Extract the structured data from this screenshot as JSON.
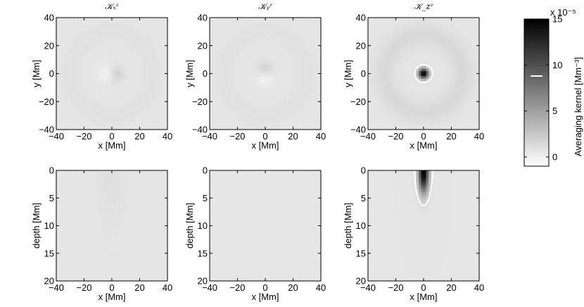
{
  "chart_data": [
    {
      "type": "heatmap",
      "title": "𝒦ₓᶻ",
      "xlabel": "x [Mm]",
      "ylabel": "y [Mm]",
      "xlim": [
        -40,
        40
      ],
      "ylim": [
        -40,
        40
      ],
      "xticks": [
        -40,
        -20,
        0,
        20,
        40
      ],
      "yticks": [
        40,
        20,
        0,
        -20,
        -40
      ],
      "xtick_labels": [
        "−40",
        "−20",
        "0",
        "20",
        "40"
      ],
      "ytick_labels": [
        "40",
        "20",
        "0",
        "−20",
        "−40"
      ],
      "features": [
        {
          "x": -3,
          "y": 0,
          "value": -1.0,
          "sigma": 4
        },
        {
          "x": 3,
          "y": 0,
          "value": 1.3,
          "sigma": 4
        },
        {
          "ring_radius": 30,
          "value": 0.3,
          "width": 5
        }
      ]
    },
    {
      "type": "heatmap",
      "title": "𝒦ᵧᶻ",
      "xlabel": "x [Mm]",
      "ylabel": "y [Mm]",
      "xlim": [
        -40,
        40
      ],
      "ylim": [
        -40,
        40
      ],
      "xticks": [
        -40,
        -20,
        0,
        20,
        40
      ],
      "yticks": [
        40,
        20,
        0,
        -20,
        -40
      ],
      "xtick_labels": [
        "−40",
        "−20",
        "0",
        "20",
        "40"
      ],
      "ytick_labels": [
        "40",
        "20",
        "0",
        "−20",
        "−40"
      ],
      "features": [
        {
          "x": 0,
          "y": 3,
          "value": 1.3,
          "sigma": 4
        },
        {
          "x": 0,
          "y": -3,
          "value": -1.0,
          "sigma": 4
        },
        {
          "ring_radius": 30,
          "value": 0.3,
          "width": 5
        }
      ]
    },
    {
      "type": "heatmap",
      "title": "𝒦_zᶻ",
      "xlabel": "x [Mm]",
      "ylabel": "y [Mm]",
      "xlim": [
        -40,
        40
      ],
      "ylim": [
        -40,
        40
      ],
      "xticks": [
        -40,
        -20,
        0,
        20,
        40
      ],
      "yticks": [
        40,
        20,
        0,
        -20,
        -40
      ],
      "xtick_labels": [
        "−40",
        "−20",
        "0",
        "20",
        "40"
      ],
      "ytick_labels": [
        "40",
        "20",
        "0",
        "−20",
        "−40"
      ],
      "features": [
        {
          "x": 0,
          "y": 0,
          "value": 15,
          "sigma": 2.5
        },
        {
          "ring_radius": 28,
          "value": 0.8,
          "width": 6
        }
      ],
      "contour": {
        "x": 0,
        "y": 0,
        "radius": 4
      }
    },
    {
      "type": "heatmap",
      "title": "",
      "xlabel": "x [Mm]",
      "ylabel": "depth [Mm]",
      "xlim": [
        -40,
        40
      ],
      "ylim": [
        0,
        20
      ],
      "xticks": [
        -40,
        -20,
        0,
        20,
        40
      ],
      "yticks": [
        0,
        5,
        10,
        15,
        20
      ],
      "xtick_labels": [
        "−40",
        "−20",
        "0",
        "20",
        "40"
      ],
      "ytick_labels": [
        "0",
        "5",
        "10",
        "15",
        "20"
      ],
      "features": [
        {
          "x": 0,
          "y": 0.3,
          "value": 0.4,
          "sigma": 8
        }
      ]
    },
    {
      "type": "heatmap",
      "title": "",
      "xlabel": "x [Mm]",
      "ylabel": "depth [Mm]",
      "xlim": [
        -40,
        40
      ],
      "ylim": [
        0,
        20
      ],
      "xticks": [
        -40,
        -20,
        0,
        20,
        40
      ],
      "yticks": [
        0,
        5,
        10,
        15,
        20
      ],
      "xtick_labels": [
        "−40",
        "−20",
        "0",
        "20",
        "40"
      ],
      "ytick_labels": [
        "0",
        "5",
        "10",
        "15",
        "20"
      ],
      "features": []
    },
    {
      "type": "heatmap",
      "title": "",
      "xlabel": "x [Mm]",
      "ylabel": "depth [Mm]",
      "xlim": [
        -40,
        40
      ],
      "ylim": [
        0,
        20
      ],
      "xticks": [
        -40,
        -20,
        0,
        20,
        40
      ],
      "yticks": [
        0,
        5,
        10,
        15,
        20
      ],
      "xtick_labels": [
        "−40",
        "−20",
        "0",
        "20",
        "40"
      ],
      "ytick_labels": [
        "0",
        "5",
        "10",
        "15",
        "20"
      ],
      "features": [
        {
          "x": 0,
          "y": 0.4,
          "value": 15,
          "sigma": 2.5
        }
      ],
      "contour": {
        "x": 0,
        "y": 0,
        "radius": 4
      }
    }
  ],
  "colorbar": {
    "label": "Averaging kernel [Mm⁻³]",
    "scale_label": "x 10⁻⁵",
    "range": [
      -1,
      15
    ],
    "ticks": [
      0,
      5,
      10,
      15
    ],
    "tick_labels": [
      "0",
      "5",
      "10",
      "15"
    ],
    "marker_value": 8.8,
    "colormap": "gray_reversed"
  },
  "colors": {
    "background": "#ffffff",
    "contour": "#ffffff",
    "axis": "#000000"
  }
}
